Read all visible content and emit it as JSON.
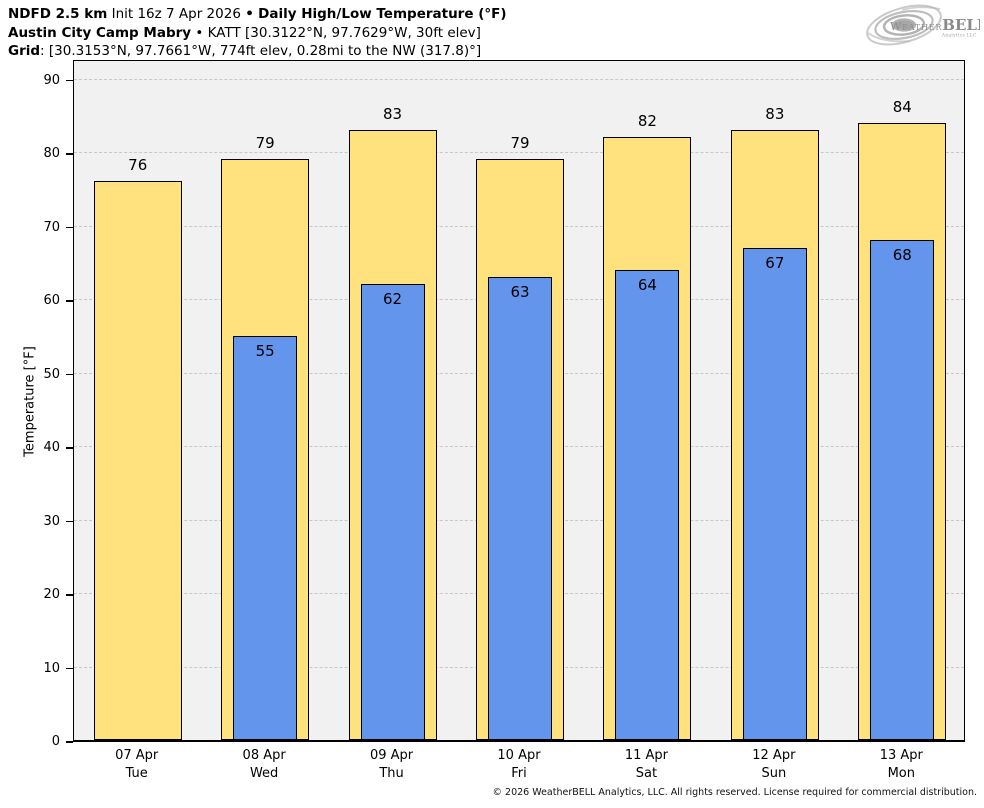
{
  "header": {
    "line1": {
      "model": "NDFD 2.5 km",
      "init": "Init 16z 7 Apr 2026",
      "sep": "•",
      "product": "Daily High/Low Temperature (°F)"
    },
    "line2": {
      "station": "Austin City Camp Mabry",
      "sep": "•",
      "details": "KATT [30.3122°N, 97.7629°W, 30ft elev]"
    },
    "line3": {
      "label": "Grid",
      "details": ": [30.3153°N, 97.7661°W, 774ft elev, 0.28mi to the NW (317.8)°]"
    }
  },
  "logo": {
    "brand_weather": "Weather",
    "brand_bell": "BELL",
    "subtitle": "Analytics LLC"
  },
  "footer": {
    "copyright": "© 2026 WeatherBELL Analytics, LLC. All rights reserved. License required for commercial distribution."
  },
  "colors": {
    "high_bar": "#FFE17D",
    "low_bar": "#6495ED",
    "plot_background": "#F1F1F1",
    "gridline": "#C8C8C8",
    "bar_outline": "#000000"
  },
  "chart_data": {
    "type": "bar",
    "title": "Daily High/Low Temperature (°F)",
    "subtitle": "NDFD 2.5 km Init 16z 7 Apr 2026 — Austin City Camp Mabry (KATT)",
    "categories": [
      "07 Apr",
      "08 Apr",
      "09 Apr",
      "10 Apr",
      "11 Apr",
      "12 Apr",
      "13 Apr"
    ],
    "day_labels": [
      "Tue",
      "Wed",
      "Thu",
      "Fri",
      "Sat",
      "Sun",
      "Mon"
    ],
    "series": [
      {
        "name": "High",
        "color": "#FFE17D",
        "values": [
          76,
          79,
          83,
          79,
          82,
          83,
          84
        ]
      },
      {
        "name": "Low",
        "color": "#6495ED",
        "values": [
          null,
          55,
          62,
          63,
          64,
          67,
          68
        ]
      }
    ],
    "xlabel": "",
    "ylabel": "Temperature [°F]",
    "ylim": [
      0,
      92.8
    ],
    "yticks": [
      0,
      10,
      20,
      30,
      40,
      50,
      60,
      70,
      80,
      90
    ],
    "grid": "horizontal dashed",
    "legend": "none"
  }
}
